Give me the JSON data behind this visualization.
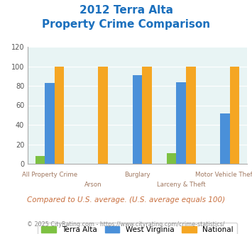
{
  "title_line1": "2012 Terra Alta",
  "title_line2": "Property Crime Comparison",
  "categories": [
    "All Property Crime",
    "Arson",
    "Burglary",
    "Larceny & Theft",
    "Motor Vehicle Theft"
  ],
  "terra_alta": [
    8,
    0,
    0,
    11,
    0
  ],
  "west_virginia": [
    83,
    0,
    91,
    84,
    52
  ],
  "national": [
    100,
    100,
    100,
    100,
    100
  ],
  "colors": {
    "terra_alta": "#7dc142",
    "west_virginia": "#4a90d9",
    "national": "#f5a623"
  },
  "ylim": [
    0,
    120
  ],
  "yticks": [
    0,
    20,
    40,
    60,
    80,
    100,
    120
  ],
  "bg_color": "#e8f4f4",
  "title_color": "#1a6fbd",
  "xlabel_color": "#a07860",
  "footnote": "Compared to U.S. average. (U.S. average equals 100)",
  "copyright": "© 2025 CityRating.com - https://www.cityrating.com/crime-statistics/",
  "footnote_color": "#c87040",
  "copyright_color": "#888888",
  "legend_labels": [
    "Terra Alta",
    "West Virginia",
    "National"
  ]
}
